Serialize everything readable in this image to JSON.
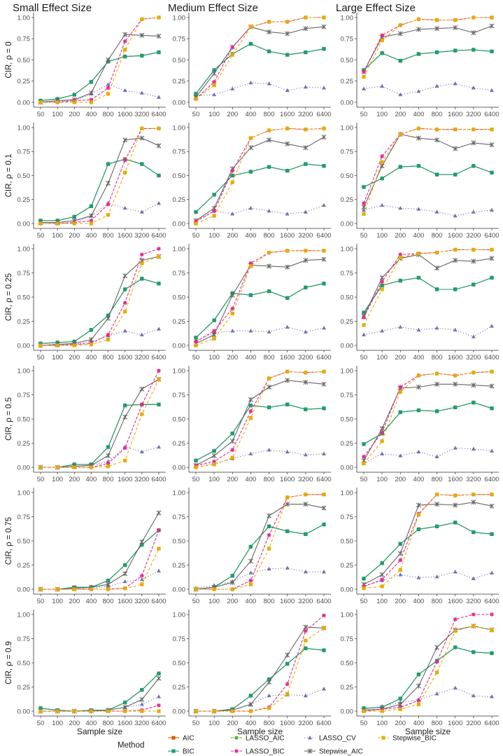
{
  "chart_data": {
    "type": "line",
    "column_titles": [
      "Small Effect Size",
      "Medium Effect Size",
      "Large Effect Size"
    ],
    "row_titles": [
      "CIR, ρ = 0",
      "CIR, ρ = 0.1",
      "CIR, ρ = 0.25",
      "CIR, ρ = 0.5",
      "CIR, ρ = 0.75",
      "CIR, ρ = 0.9"
    ],
    "xlabel": "Sample size",
    "x": [
      "50",
      "100",
      "200",
      "400",
      "800",
      "1600",
      "3200",
      "6400"
    ],
    "ylim": [
      0,
      1
    ],
    "yticks": [
      "0.00",
      "0.25",
      "0.50",
      "0.75",
      "1.00"
    ],
    "legend": {
      "title": "Method",
      "position": "bottom",
      "entries": [
        "AIC",
        "LASSO_AIC",
        "LASSO_CV",
        "Stepwise_BIC",
        "BIC",
        "LASSO_BIC",
        "Stepwise_AIC"
      ]
    },
    "methods": {
      "AIC": {
        "color": "#D95F02"
      },
      "BIC": {
        "color": "#1B9E77"
      },
      "LASSO_AIC": {
        "color": "#66A61E"
      },
      "LASSO_BIC": {
        "color": "#E7298A"
      },
      "LASSO_CV": {
        "color": "#7570B3"
      },
      "Stepwise_AIC": {
        "color": "#666666"
      },
      "Stepwise_BIC": {
        "color": "#E6AB02"
      }
    },
    "panels": [
      [
        {
          "AIC": [
            0.02,
            0.04,
            0.09,
            0.24,
            0.48,
            0.54,
            0.55,
            0.59
          ],
          "LASSO_BIC": [
            0.0,
            0.0,
            0.02,
            0.03,
            0.17,
            0.72,
            0.98,
            1.0
          ],
          "LASSO_CV": [
            0.01,
            0.01,
            0.02,
            0.1,
            0.21,
            0.14,
            0.11,
            0.06
          ],
          "Stepwise_AIC": [
            0.0,
            0.02,
            0.03,
            0.11,
            0.5,
            0.8,
            0.79,
            0.78
          ],
          "Stepwise_BIC": [
            0.0,
            0.0,
            0.0,
            0.0,
            0.1,
            0.62,
            0.98,
            1.0
          ]
        },
        {
          "AIC": [
            0.1,
            0.38,
            0.57,
            0.69,
            0.6,
            0.56,
            0.59,
            0.63
          ],
          "LASSO_BIC": [
            0.04,
            0.24,
            0.65,
            0.89,
            0.95,
            0.95,
            1.0,
            1.0
          ],
          "LASSO_CV": [
            0.08,
            0.09,
            0.16,
            0.23,
            0.22,
            0.14,
            0.18,
            0.17
          ],
          "Stepwise_AIC": [
            0.06,
            0.34,
            0.65,
            0.89,
            0.83,
            0.81,
            0.87,
            0.89
          ],
          "Stepwise_BIC": [
            0.04,
            0.2,
            0.56,
            0.89,
            0.95,
            0.95,
            1.0,
            1.0
          ]
        },
        {
          "AIC": [
            0.38,
            0.58,
            0.49,
            0.57,
            0.59,
            0.61,
            0.62,
            0.6
          ],
          "LASSO_BIC": [
            0.36,
            0.79,
            0.91,
            0.98,
            0.97,
            0.97,
            1.0,
            1.0
          ],
          "LASSO_CV": [
            0.16,
            0.19,
            0.09,
            0.13,
            0.19,
            0.22,
            0.17,
            0.14
          ],
          "Stepwise_AIC": [
            0.36,
            0.77,
            0.81,
            0.86,
            0.87,
            0.88,
            0.82,
            0.9
          ],
          "Stepwise_BIC": [
            0.3,
            0.73,
            0.91,
            0.98,
            0.97,
            0.97,
            1.0,
            1.0
          ]
        }
      ],
      [
        {
          "AIC": [
            0.03,
            0.03,
            0.07,
            0.18,
            0.62,
            0.67,
            0.62,
            0.5
          ],
          "LASSO_BIC": [
            0.0,
            0.0,
            0.01,
            0.03,
            0.2,
            0.66,
            0.99,
            0.99
          ],
          "LASSO_CV": [
            0.0,
            0.0,
            0.01,
            0.08,
            0.21,
            0.16,
            0.12,
            0.21
          ],
          "Stepwise_AIC": [
            0.01,
            0.01,
            0.03,
            0.08,
            0.42,
            0.87,
            0.89,
            0.81
          ],
          "Stepwise_BIC": [
            0.0,
            0.0,
            0.0,
            0.0,
            0.09,
            0.53,
            0.99,
            0.99
          ]
        },
        {
          "AIC": [
            0.12,
            0.3,
            0.5,
            0.54,
            0.59,
            0.55,
            0.62,
            0.6
          ],
          "LASSO_BIC": [
            0.02,
            0.13,
            0.55,
            0.89,
            0.97,
            0.99,
            0.98,
            0.99
          ],
          "LASSO_CV": [
            0.03,
            0.13,
            0.1,
            0.16,
            0.13,
            0.1,
            0.12,
            0.19
          ],
          "Stepwise_AIC": [
            0.03,
            0.16,
            0.57,
            0.79,
            0.87,
            0.83,
            0.79,
            0.9
          ],
          "Stepwise_BIC": [
            0.0,
            0.08,
            0.43,
            0.89,
            0.97,
            0.99,
            0.98,
            0.99
          ]
        },
        {
          "AIC": [
            0.38,
            0.47,
            0.59,
            0.6,
            0.51,
            0.51,
            0.6,
            0.53
          ],
          "LASSO_BIC": [
            0.21,
            0.7,
            0.93,
            0.99,
            0.98,
            0.98,
            0.98,
            0.98
          ],
          "LASSO_CV": [
            0.14,
            0.19,
            0.16,
            0.15,
            0.12,
            0.08,
            0.12,
            0.14
          ],
          "Stepwise_AIC": [
            0.17,
            0.6,
            0.93,
            0.89,
            0.87,
            0.78,
            0.84,
            0.82
          ],
          "Stepwise_BIC": [
            0.1,
            0.64,
            0.93,
            0.99,
            0.98,
            0.98,
            0.98,
            0.98
          ]
        }
      ],
      [
        {
          "AIC": [
            0.02,
            0.03,
            0.04,
            0.16,
            0.31,
            0.58,
            0.69,
            0.64
          ],
          "LASSO_BIC": [
            0.0,
            0.0,
            0.01,
            0.02,
            0.11,
            0.44,
            0.94,
            1.0
          ],
          "LASSO_CV": [
            0.0,
            0.01,
            0.01,
            0.04,
            0.1,
            0.15,
            0.11,
            0.17
          ],
          "Stepwise_AIC": [
            0.0,
            0.01,
            0.02,
            0.06,
            0.28,
            0.72,
            0.88,
            0.92
          ],
          "Stepwise_BIC": [
            0.0,
            0.0,
            0.0,
            0.01,
            0.06,
            0.35,
            0.85,
            0.92
          ]
        },
        {
          "AIC": [
            0.08,
            0.26,
            0.54,
            0.52,
            0.56,
            0.49,
            0.6,
            0.64
          ],
          "LASSO_BIC": [
            0.04,
            0.15,
            0.38,
            0.85,
            0.96,
            0.98,
            0.98,
            0.98
          ],
          "LASSO_CV": [
            0.05,
            0.13,
            0.15,
            0.15,
            0.14,
            0.19,
            0.14,
            0.18
          ],
          "Stepwise_AIC": [
            0.02,
            0.11,
            0.52,
            0.83,
            0.82,
            0.81,
            0.88,
            0.89
          ],
          "Stepwise_BIC": [
            0.0,
            0.07,
            0.33,
            0.82,
            0.96,
            0.98,
            0.98,
            0.98
          ]
        },
        {
          "AIC": [
            0.34,
            0.62,
            0.67,
            0.7,
            0.58,
            0.58,
            0.63,
            0.7
          ],
          "LASSO_BIC": [
            0.29,
            0.66,
            0.94,
            0.95,
            0.96,
            0.99,
            0.99,
            0.99
          ],
          "LASSO_CV": [
            0.11,
            0.15,
            0.19,
            0.16,
            0.18,
            0.16,
            0.09,
            0.2
          ],
          "Stepwise_AIC": [
            0.3,
            0.7,
            0.9,
            0.94,
            0.8,
            0.88,
            0.87,
            0.9
          ],
          "Stepwise_BIC": [
            0.21,
            0.58,
            0.91,
            0.95,
            0.96,
            0.99,
            0.99,
            0.99
          ]
        }
      ],
      [
        {
          "AIC": [
            0.0,
            0.0,
            0.03,
            0.03,
            0.21,
            0.64,
            0.65,
            0.65
          ],
          "LASSO_BIC": [
            0.0,
            0.0,
            0.0,
            0.0,
            0.04,
            0.2,
            0.65,
            1.0
          ],
          "LASSO_CV": [
            0.0,
            0.0,
            0.01,
            0.02,
            0.06,
            0.21,
            0.16,
            0.21
          ],
          "Stepwise_AIC": [
            0.0,
            0.0,
            0.01,
            0.02,
            0.12,
            0.52,
            0.81,
            0.91
          ],
          "Stepwise_BIC": [
            0.0,
            0.0,
            0.0,
            0.0,
            0.01,
            0.07,
            0.55,
            0.91
          ]
        },
        {
          "AIC": [
            0.07,
            0.17,
            0.35,
            0.64,
            0.62,
            0.65,
            0.6,
            0.61
          ],
          "LASSO_BIC": [
            0.02,
            0.06,
            0.18,
            0.58,
            0.92,
            0.99,
            0.98,
            0.99
          ],
          "LASSO_CV": [
            0.01,
            0.04,
            0.09,
            0.14,
            0.18,
            0.16,
            0.13,
            0.14
          ],
          "Stepwise_AIC": [
            0.02,
            0.12,
            0.27,
            0.7,
            0.83,
            0.9,
            0.88,
            0.86
          ],
          "Stepwise_BIC": [
            0.0,
            0.03,
            0.1,
            0.51,
            0.92,
            0.99,
            0.98,
            0.99
          ]
        },
        {
          "AIC": [
            0.24,
            0.35,
            0.57,
            0.59,
            0.58,
            0.62,
            0.67,
            0.61
          ],
          "LASSO_BIC": [
            0.11,
            0.36,
            0.83,
            0.95,
            0.97,
            0.95,
            0.98,
            0.99
          ],
          "LASSO_CV": [
            0.04,
            0.14,
            0.12,
            0.16,
            0.11,
            0.2,
            0.19,
            0.17
          ],
          "Stepwise_AIC": [
            0.07,
            0.4,
            0.82,
            0.83,
            0.86,
            0.86,
            0.85,
            0.84
          ],
          "Stepwise_BIC": [
            0.04,
            0.27,
            0.78,
            0.95,
            0.97,
            0.95,
            0.98,
            0.99
          ]
        }
      ],
      [
        {
          "AIC": [
            0.0,
            0.0,
            0.02,
            0.02,
            0.09,
            0.25,
            0.46,
            0.61
          ],
          "LASSO_BIC": [
            0.0,
            0.0,
            0.0,
            0.0,
            0.0,
            0.01,
            0.14,
            0.61
          ],
          "LASSO_CV": [
            0.0,
            0.0,
            0.0,
            0.01,
            0.03,
            0.08,
            0.1,
            0.19
          ],
          "Stepwise_AIC": [
            0.0,
            0.0,
            0.01,
            0.02,
            0.05,
            0.16,
            0.49,
            0.79
          ],
          "Stepwise_BIC": [
            0.0,
            0.0,
            0.0,
            0.0,
            0.0,
            0.01,
            0.05,
            0.42
          ]
        },
        {
          "AIC": [
            0.0,
            0.02,
            0.14,
            0.44,
            0.65,
            0.6,
            0.57,
            0.67
          ],
          "LASSO_BIC": [
            0.0,
            0.0,
            0.0,
            0.09,
            0.56,
            0.95,
            0.98,
            0.98
          ],
          "LASSO_CV": [
            0.01,
            0.04,
            0.08,
            0.17,
            0.21,
            0.22,
            0.18,
            0.18
          ],
          "Stepwise_AIC": [
            0.0,
            0.02,
            0.07,
            0.29,
            0.76,
            0.88,
            0.88,
            0.84
          ],
          "Stepwise_BIC": [
            0.0,
            0.0,
            0.0,
            0.05,
            0.42,
            0.95,
            0.98,
            0.98
          ]
        },
        {
          "AIC": [
            0.11,
            0.27,
            0.47,
            0.62,
            0.65,
            0.69,
            0.59,
            0.57
          ],
          "LASSO_BIC": [
            0.03,
            0.1,
            0.3,
            0.78,
            0.98,
            0.97,
            0.98,
            0.98
          ],
          "LASSO_CV": [
            0.03,
            0.09,
            0.15,
            0.12,
            0.13,
            0.18,
            0.11,
            0.17
          ],
          "Stepwise_AIC": [
            0.05,
            0.15,
            0.37,
            0.87,
            0.88,
            0.87,
            0.9,
            0.86
          ],
          "Stepwise_BIC": [
            0.01,
            0.03,
            0.2,
            0.77,
            0.98,
            0.97,
            0.98,
            0.98
          ]
        }
      ],
      [
        {
          "AIC": [
            0.03,
            0.01,
            0.0,
            0.01,
            0.01,
            0.09,
            0.22,
            0.39
          ],
          "LASSO_BIC": [
            0.0,
            0.0,
            0.0,
            0.0,
            0.0,
            0.0,
            0.01,
            0.06
          ],
          "LASSO_CV": [
            0.0,
            0.0,
            0.0,
            0.0,
            0.01,
            0.04,
            0.07,
            0.15
          ],
          "Stepwise_AIC": [
            0.0,
            0.0,
            0.0,
            0.0,
            0.01,
            0.04,
            0.12,
            0.34
          ],
          "Stepwise_BIC": [
            0.0,
            0.0,
            0.0,
            0.0,
            0.0,
            0.0,
            0.0,
            0.0
          ]
        },
        {
          "AIC": [
            0.0,
            0.0,
            0.02,
            0.16,
            0.33,
            0.49,
            0.65,
            0.63
          ],
          "LASSO_BIC": [
            0.0,
            0.0,
            0.0,
            0.0,
            0.04,
            0.28,
            0.83,
            0.99
          ],
          "LASSO_CV": [
            0.0,
            0.0,
            0.01,
            0.07,
            0.16,
            0.17,
            0.16,
            0.23
          ],
          "Stepwise_AIC": [
            0.0,
            0.0,
            0.01,
            0.07,
            0.3,
            0.58,
            0.87,
            0.86
          ],
          "Stepwise_BIC": [
            0.0,
            0.0,
            0.0,
            0.0,
            0.03,
            0.18,
            0.73,
            0.86
          ]
        },
        {
          "AIC": [
            0.03,
            0.04,
            0.13,
            0.38,
            0.52,
            0.66,
            0.61,
            0.6
          ],
          "LASSO_BIC": [
            0.0,
            0.02,
            0.04,
            0.11,
            0.51,
            0.95,
            1.0,
            1.0
          ],
          "LASSO_CV": [
            0.02,
            0.05,
            0.09,
            0.12,
            0.18,
            0.24,
            0.16,
            0.15
          ],
          "Stepwise_AIC": [
            0.01,
            0.02,
            0.07,
            0.26,
            0.66,
            0.84,
            0.88,
            0.84
          ],
          "Stepwise_BIC": [
            0.0,
            0.0,
            0.02,
            0.07,
            0.4,
            0.83,
            0.88,
            0.84
          ]
        }
      ]
    ]
  }
}
